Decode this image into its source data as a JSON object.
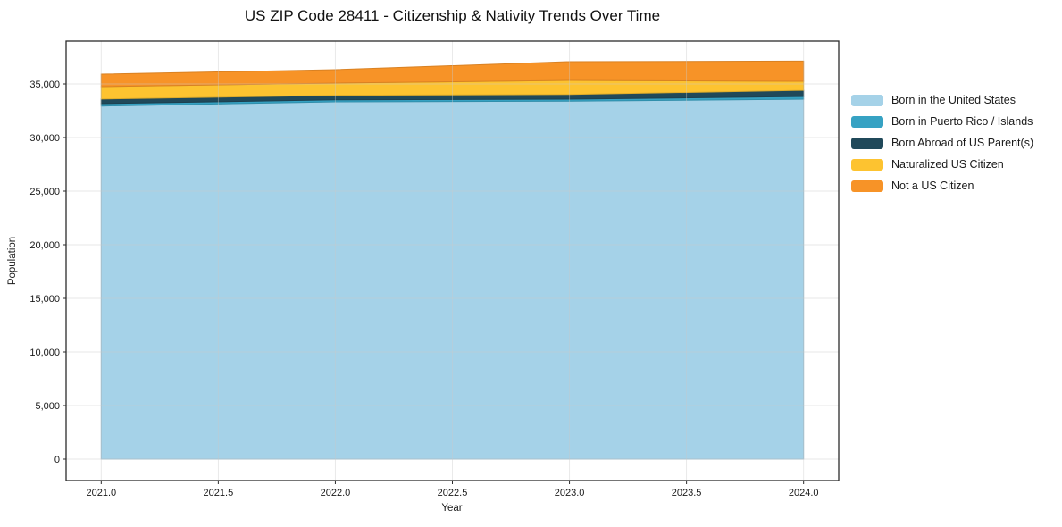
{
  "title": "US ZIP Code 28411 - Citizenship & Nativity Trends Over Time",
  "chart_data": {
    "type": "area",
    "stacked": true,
    "title": "US ZIP Code 28411 - Citizenship & Nativity Trends Over Time",
    "xlabel": "Year",
    "ylabel": "Population",
    "x": [
      2021,
      2022,
      2023,
      2024
    ],
    "x_range": [
      2020.85,
      2024.15
    ],
    "y_range": [
      -2000,
      39000
    ],
    "grid": true,
    "legend_position": "right-outside",
    "x_ticks": [
      {
        "value": 2021.0,
        "label": "2021.0"
      },
      {
        "value": 2021.5,
        "label": "2021.5"
      },
      {
        "value": 2022.0,
        "label": "2022.0"
      },
      {
        "value": 2022.5,
        "label": "2022.5"
      },
      {
        "value": 2023.0,
        "label": "2023.0"
      },
      {
        "value": 2023.5,
        "label": "2023.5"
      },
      {
        "value": 2024.0,
        "label": "2024.0"
      }
    ],
    "y_ticks": [
      {
        "value": 0,
        "label": "0"
      },
      {
        "value": 5000,
        "label": "5,000"
      },
      {
        "value": 10000,
        "label": "10,000"
      },
      {
        "value": 15000,
        "label": "15,000"
      },
      {
        "value": 20000,
        "label": "20,000"
      },
      {
        "value": 25000,
        "label": "25,000"
      },
      {
        "value": 30000,
        "label": "30,000"
      },
      {
        "value": 35000,
        "label": "35,000"
      }
    ],
    "series": [
      {
        "name": "Born in the United States",
        "color": "#a5d2e8",
        "values": [
          32940,
          33330,
          33390,
          33580
        ]
      },
      {
        "name": "Born in Puerto Rico / Islands",
        "color": "#36a2c3",
        "values": [
          230,
          190,
          190,
          250
        ]
      },
      {
        "name": "Born Abroad of US Parent(s)",
        "color": "#20495a",
        "values": [
          420,
          420,
          440,
          580
        ]
      },
      {
        "name": "Naturalized US Citizen",
        "color": "#fdc330",
        "values": [
          1160,
          1140,
          1310,
          840
        ]
      },
      {
        "name": "Not a US Citizen",
        "color": "#f79327",
        "values": [
          1170,
          1250,
          1750,
          1880
        ]
      }
    ],
    "totals": [
      35920,
      36330,
      37080,
      37130
    ]
  }
}
